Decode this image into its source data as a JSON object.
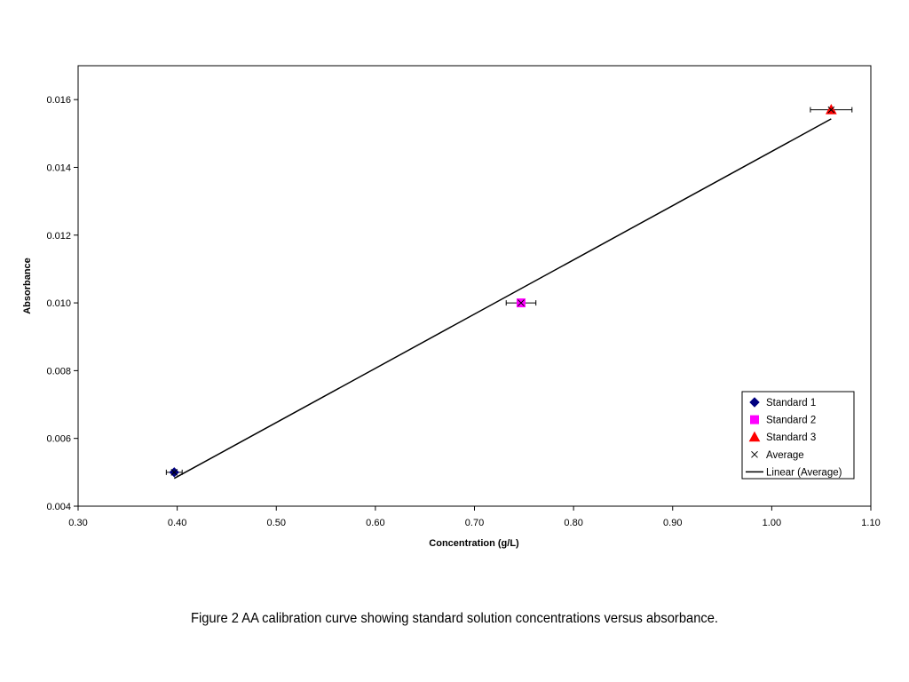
{
  "figure": {
    "caption": "Figure 2 AA calibration curve showing standard solution concentrations versus absorbance."
  },
  "chart_data": {
    "type": "scatter",
    "xlabel": "Concentration (g/L)",
    "ylabel": "Absorbance",
    "xlim": [
      0.3,
      1.1
    ],
    "ylim": [
      0.004,
      0.017
    ],
    "x_ticks": [
      0.3,
      0.4,
      0.5,
      0.6,
      0.7,
      0.8,
      0.9,
      1.0,
      1.1
    ],
    "x_tick_labels": [
      "0.30",
      "0.40",
      "0.50",
      "0.60",
      "0.70",
      "0.80",
      "0.90",
      "1.00",
      "1.10"
    ],
    "y_ticks": [
      0.004,
      0.006,
      0.008,
      0.01,
      0.012,
      0.014,
      0.016
    ],
    "y_tick_labels": [
      "0.004",
      "0.006",
      "0.008",
      "0.010",
      "0.012",
      "0.014",
      "0.016"
    ],
    "grid": false,
    "legend_position": "bottom-right",
    "series": [
      {
        "name": "Standard 1",
        "marker": "diamond",
        "color": "#000080",
        "x": [
          0.397
        ],
        "y": [
          0.005
        ],
        "x_error": [
          0.008
        ]
      },
      {
        "name": "Standard 2",
        "marker": "square",
        "color": "#FF00FF",
        "x": [
          0.747
        ],
        "y": [
          0.01
        ],
        "x_error": [
          0.015
        ]
      },
      {
        "name": "Standard 3",
        "marker": "triangle",
        "color": "#FF0000",
        "x": [
          1.06
        ],
        "y": [
          0.0157
        ],
        "x_error": [
          0.021
        ]
      },
      {
        "name": "Average",
        "marker": "x",
        "color": "#000000",
        "x": [
          0.397,
          0.747,
          1.06
        ],
        "y": [
          0.005,
          0.01,
          0.0157
        ]
      },
      {
        "name": "Linear (Average)",
        "type": "line",
        "color": "#000000",
        "x": [
          0.397,
          1.06
        ],
        "y": [
          0.00482,
          0.01543
        ]
      }
    ]
  }
}
